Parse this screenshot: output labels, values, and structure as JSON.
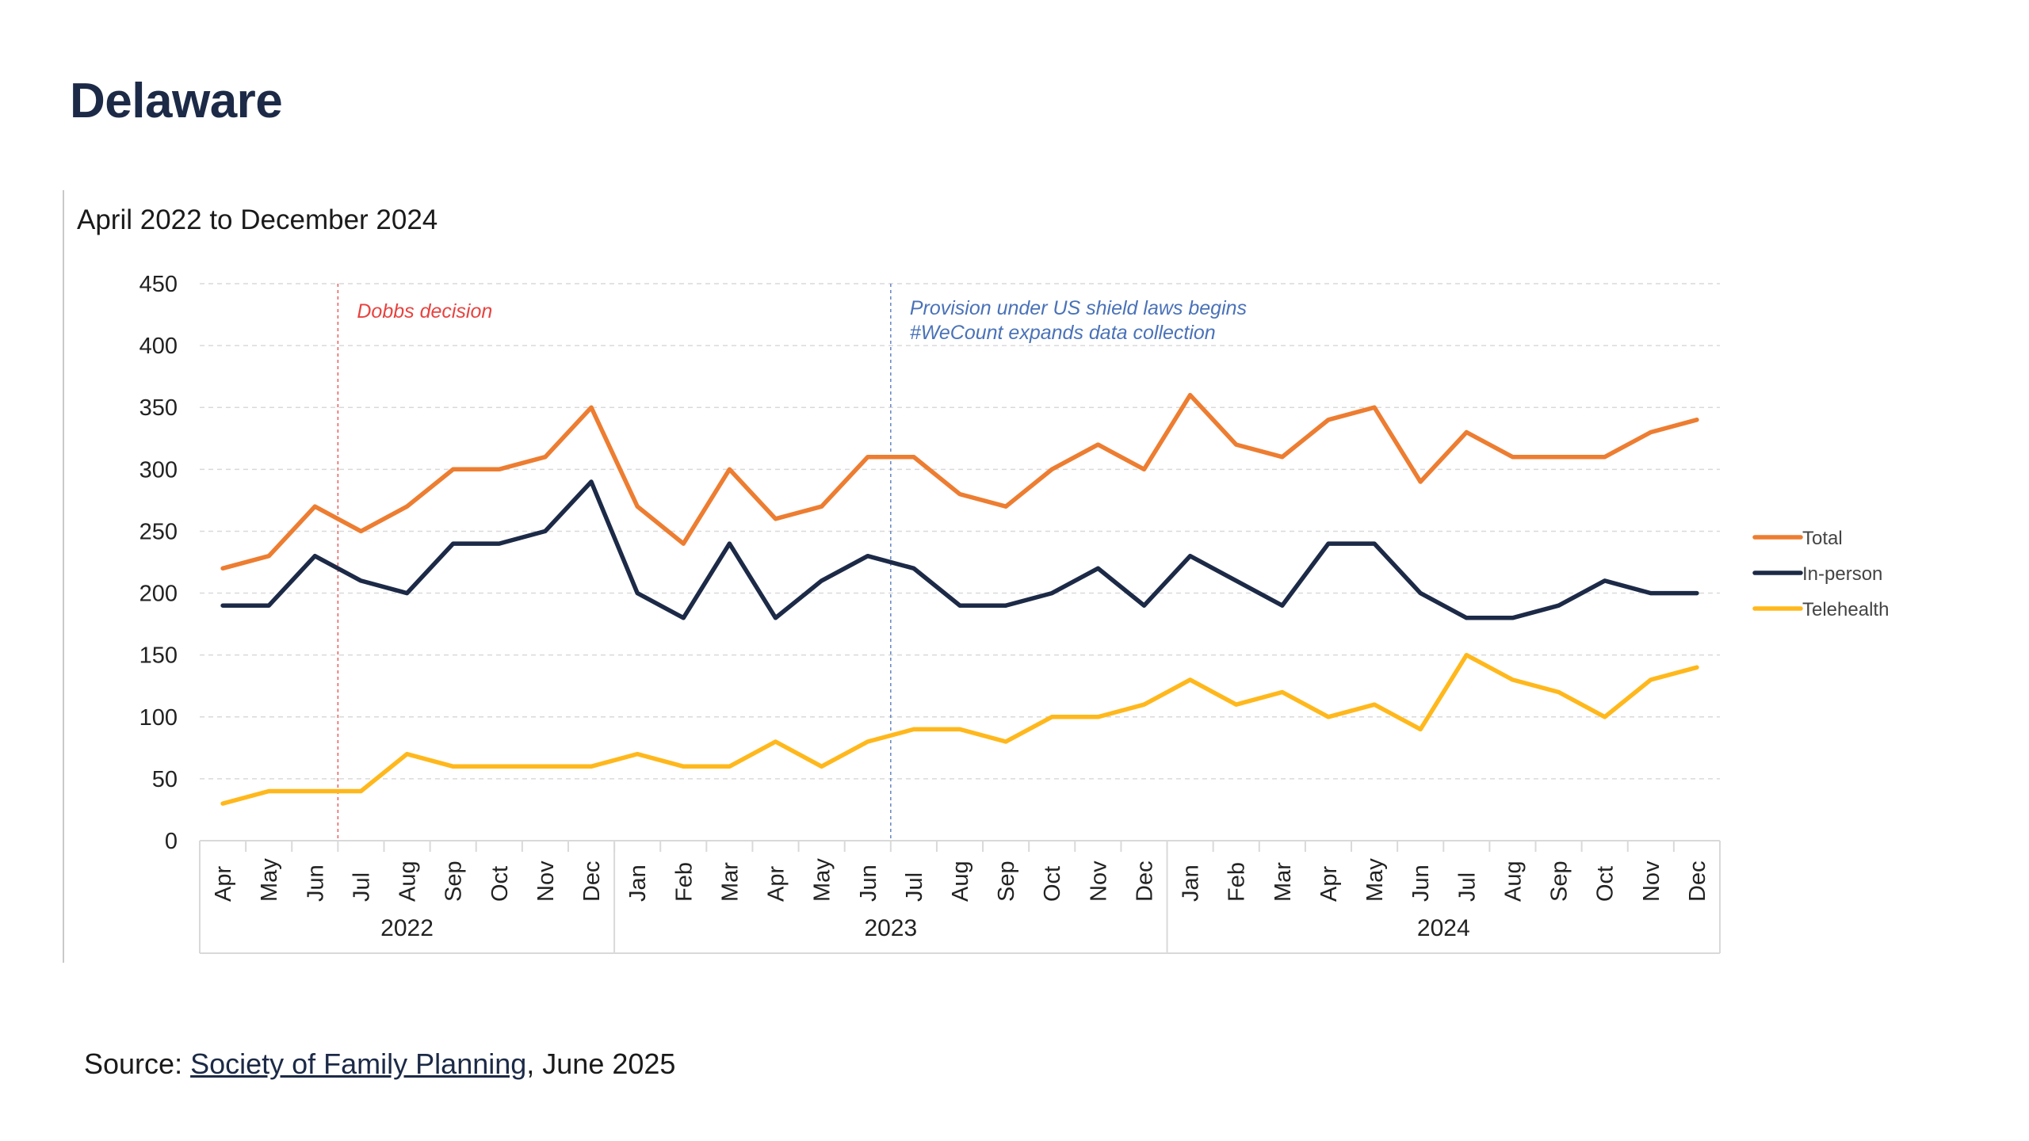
{
  "page": {
    "title": "Delaware",
    "source_prefix": "Source: ",
    "source_link": "Society of Family Planning",
    "source_suffix": ", June 2025"
  },
  "chart_data": {
    "type": "line",
    "title": "",
    "subtitle": "April 2022 to December 2024",
    "xlabel": "",
    "ylabel": "",
    "ylim": [
      0,
      450
    ],
    "y_ticks": [
      0,
      50,
      100,
      150,
      200,
      250,
      300,
      350,
      400,
      450
    ],
    "grid": true,
    "legend_position": "right",
    "categories": [
      "Apr",
      "May",
      "Jun",
      "Jul",
      "Aug",
      "Sep",
      "Oct",
      "Nov",
      "Dec",
      "Jan",
      "Feb",
      "Mar",
      "Apr",
      "May",
      "Jun",
      "Jul",
      "Aug",
      "Sep",
      "Oct",
      "Nov",
      "Dec",
      "Jan",
      "Feb",
      "Mar",
      "Apr",
      "May",
      "Jun",
      "Jul",
      "Aug",
      "Sep",
      "Oct",
      "Nov",
      "Dec"
    ],
    "year_groups": [
      {
        "label": "2022",
        "start": 0,
        "end": 8
      },
      {
        "label": "2023",
        "start": 9,
        "end": 20
      },
      {
        "label": "2024",
        "start": 21,
        "end": 32
      }
    ],
    "series": [
      {
        "name": "Total",
        "color": "#ED7D31",
        "values": [
          220,
          230,
          270,
          250,
          270,
          300,
          300,
          310,
          350,
          270,
          240,
          300,
          260,
          270,
          310,
          310,
          280,
          270,
          300,
          320,
          300,
          360,
          320,
          310,
          340,
          350,
          290,
          330,
          310,
          310,
          310,
          330,
          340
        ]
      },
      {
        "name": "In-person",
        "color": "#1C2A47",
        "values": [
          190,
          190,
          230,
          210,
          200,
          240,
          240,
          250,
          290,
          200,
          180,
          240,
          180,
          210,
          230,
          220,
          190,
          190,
          200,
          220,
          190,
          230,
          210,
          190,
          240,
          240,
          200,
          180,
          180,
          190,
          210,
          200,
          200
        ]
      },
      {
        "name": "Telehealth",
        "color": "#FFB81C",
        "values": [
          30,
          40,
          40,
          40,
          70,
          60,
          60,
          60,
          60,
          70,
          60,
          60,
          80,
          60,
          80,
          90,
          90,
          80,
          100,
          100,
          110,
          130,
          110,
          120,
          100,
          110,
          90,
          150,
          130,
          120,
          100,
          130,
          140
        ]
      }
    ],
    "annotations": [
      {
        "text_lines": [
          "Dobbs decision"
        ],
        "after_index": 2,
        "color": "#E8433F"
      },
      {
        "text_lines": [
          "Provision under US shield laws begins",
          "#WeCount expands data collection"
        ],
        "after_index": 14,
        "color": "#4A72B8"
      }
    ]
  }
}
